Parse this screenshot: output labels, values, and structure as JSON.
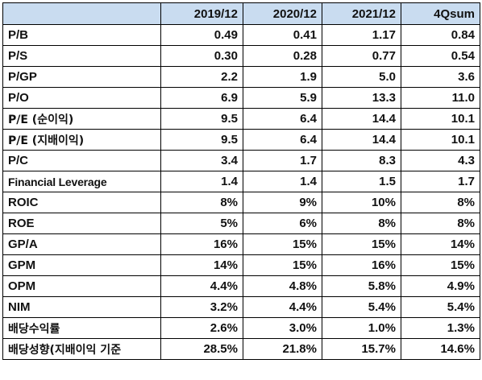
{
  "header": {
    "corner": "",
    "columns": [
      "2019/12",
      "2020/12",
      "2021/12",
      "4Qsum"
    ]
  },
  "rows": [
    {
      "label": "P/B",
      "values": [
        "0.49",
        "0.41",
        "1.17",
        "0.84"
      ]
    },
    {
      "label": "P/S",
      "values": [
        "0.30",
        "0.28",
        "0.77",
        "0.54"
      ]
    },
    {
      "label": "P/GP",
      "values": [
        "2.2",
        "1.9",
        "5.0",
        "3.6"
      ]
    },
    {
      "label": "P/O",
      "values": [
        "6.9",
        "5.9",
        "13.3",
        "11.0"
      ]
    },
    {
      "label": "P/E (순이익)",
      "values": [
        "9.5",
        "6.4",
        "14.4",
        "10.1"
      ]
    },
    {
      "label": "P/E (지배이익)",
      "values": [
        "9.5",
        "6.4",
        "14.4",
        "10.1"
      ]
    },
    {
      "label": "P/C",
      "values": [
        "3.4",
        "1.7",
        "8.3",
        "4.3"
      ]
    },
    {
      "label": "Financial Leverage",
      "values": [
        "1.4",
        "1.4",
        "1.5",
        "1.7"
      ]
    },
    {
      "label": "ROIC",
      "values": [
        "8%",
        "9%",
        "10%",
        "8%"
      ]
    },
    {
      "label": "ROE",
      "values": [
        "5%",
        "6%",
        "8%",
        "8%"
      ]
    },
    {
      "label": "GP/A",
      "values": [
        "16%",
        "15%",
        "15%",
        "14%"
      ]
    },
    {
      "label": "GPM",
      "values": [
        "14%",
        "15%",
        "16%",
        "15%"
      ]
    },
    {
      "label": "OPM",
      "values": [
        "4.4%",
        "4.8%",
        "5.8%",
        "4.9%"
      ]
    },
    {
      "label": "NIM",
      "values": [
        "3.2%",
        "4.4%",
        "5.4%",
        "5.4%"
      ]
    },
    {
      "label": "배당수익률",
      "values": [
        "2.6%",
        "3.0%",
        "1.0%",
        "1.3%"
      ]
    },
    {
      "label": "배당성향(지배이익 기준",
      "values": [
        "28.5%",
        "21.8%",
        "15.7%",
        "14.6%"
      ]
    }
  ]
}
